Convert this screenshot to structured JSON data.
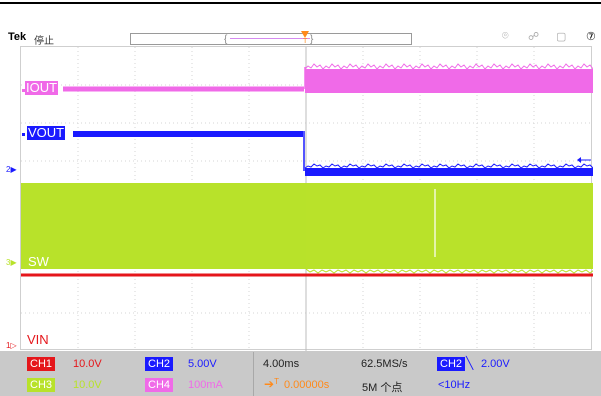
{
  "header": {
    "brand": "Tek",
    "status": "停止"
  },
  "traces": {
    "iout_label": "IOUT",
    "vout_label": "VOUT",
    "sw_label": "SW",
    "vin_label": "VIN"
  },
  "markers": {
    "ch2_level": "2",
    "ch3_level": "3",
    "ch1_level": "1"
  },
  "channels": {
    "ch1": {
      "label": "CH1",
      "scale": "10.0V",
      "color": "#e5161b"
    },
    "ch2": {
      "label": "CH2",
      "scale": "5.00V",
      "color": "#1a1aff"
    },
    "ch3": {
      "label": "CH3",
      "scale": "10.0V",
      "color": "#b8e22a"
    },
    "ch4": {
      "label": "CH4",
      "scale": "100mA",
      "color": "#f06ae8"
    }
  },
  "timebase": {
    "scale": "4.00ms",
    "sample_rate": "62.5MS/s",
    "record_length": "5M 个点",
    "trigger_delay": "0.00000s",
    "trigger_source": "CH2",
    "trigger_level": "2.00V",
    "trigger_freq": "<10Hz"
  },
  "colors": {
    "trigger_orange": "#ff8a1a",
    "grid": "#d6d6d6"
  }
}
